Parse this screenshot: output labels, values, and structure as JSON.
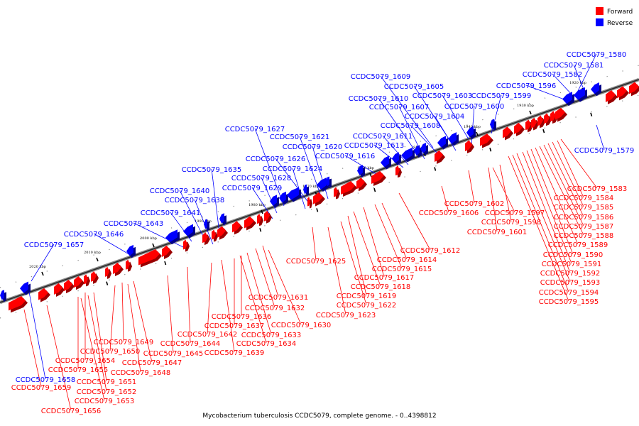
{
  "legend": {
    "forward_label": "Forward",
    "reverse_label": "Reverse",
    "forward_color": "#ff0000",
    "reverse_color": "#0000ff"
  },
  "caption": "Mycobacterium tuberculosis CCDC5079, complete genome. - 0..4398812",
  "kbp_ticks": [
    "1920 kbp",
    "1930 kbp",
    "1940 kbp",
    "1950 kbp",
    "1960 kbp",
    "1970 kbp",
    "1980 kbp",
    "1990 kbp",
    "2000 kbp",
    "2010 kbp",
    "2020 kbp"
  ],
  "reverse_genes": [
    "CCDC5079_1580",
    "CCDC5079_1581",
    "CCDC5079_1582",
    "CCDC5079_1596",
    "CCDC5079_1609",
    "CCDC5079_1605",
    "CCDC5079_1610",
    "CCDC5079_1603",
    "CCDC5079_1599",
    "CCDC5079_1607",
    "CCDC5079_1600",
    "CCDC5079_1604",
    "CCDC5079_1608",
    "CCDC5079_1611",
    "CCDC5079_1613",
    "CCDC5079_1616",
    "CCDC5079_1579",
    "CCDC5079_1627",
    "CCDC5079_1621",
    "CCDC5079_1620",
    "CCDC5079_1626",
    "CCDC5079_1624",
    "CCDC5079_1635",
    "CCDC5079_1628",
    "CCDC5079_1629",
    "CCDC5079_1640",
    "CCDC5079_1638",
    "CCDC5079_1641",
    "CCDC5079_1643",
    "CCDC5079_1646",
    "CCDC5079_1657",
    "CCDC5079_1658"
  ],
  "forward_genes": [
    "CCDC5079_1583",
    "CCDC5079_1584",
    "CCDC5079_1585",
    "CCDC5079_1586",
    "CCDC5079_1587",
    "CCDC5079_1588",
    "CCDC5079_1589",
    "CCDC5079_1590",
    "CCDC5079_1591",
    "CCDC5079_1592",
    "CCDC5079_1593",
    "CCDC5079_1594",
    "CCDC5079_1595",
    "CCDC5079_1602",
    "CCDC5079_1606",
    "CCDC5079_1597",
    "CCDC5079_1598",
    "CCDC5079_1601",
    "CCDC5079_1612",
    "CCDC5079_1614",
    "CCDC5079_1615",
    "CCDC5079_1617",
    "CCDC5079_1618",
    "CCDC5079_1619",
    "CCDC5079_1622",
    "CCDC5079_1623",
    "CCDC5079_1625",
    "CCDC5079_1631",
    "CCDC5079_1632",
    "CCDC5079_1630",
    "CCDC5079_1636",
    "CCDC5079_1637",
    "CCDC5079_1633",
    "CCDC5079_1634",
    "CCDC5079_1639",
    "CCDC5079_1642",
    "CCDC5079_1644",
    "CCDC5079_1645",
    "CCDC5079_1649",
    "CCDC5079_1650",
    "CCDC5079_1647",
    "CCDC5079_1648",
    "CCDC5079_1654",
    "CCDC5079_1655",
    "CCDC5079_1651",
    "CCDC5079_1652",
    "CCDC5079_1653",
    "CCDC5079_1659",
    "CCDC5079_1656"
  ]
}
